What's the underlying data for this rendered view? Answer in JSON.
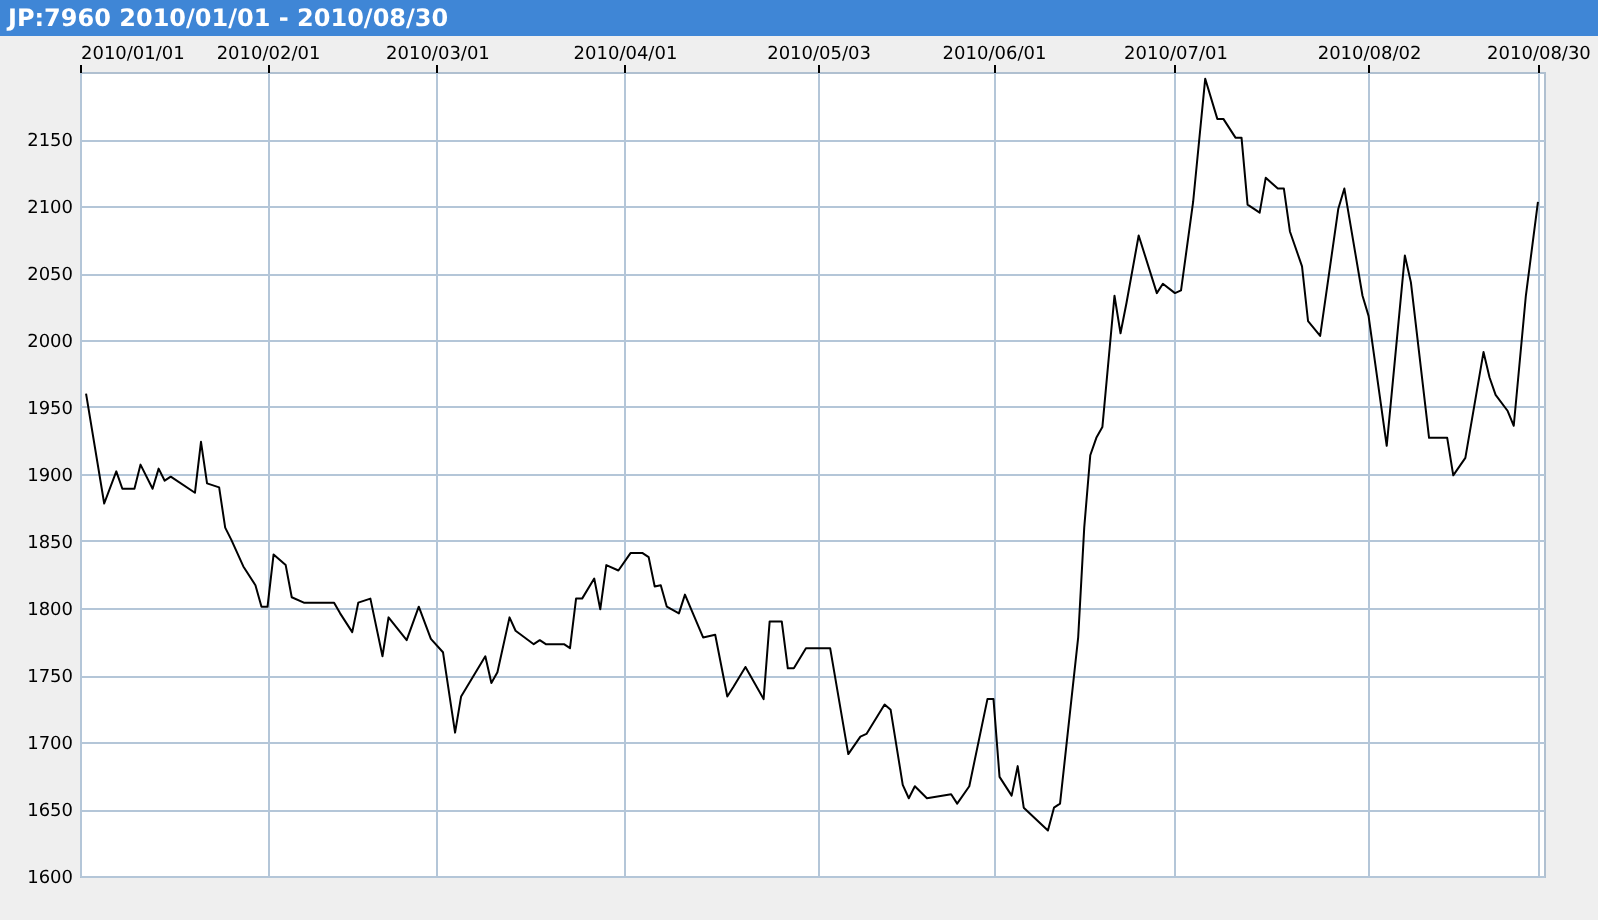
{
  "chart_data": {
    "type": "line",
    "title": "JP:7960 2010/01/01 - 2010/08/30",
    "color": "#000000",
    "grid": true,
    "x": [
      "2010-01-02",
      "2010-01-05",
      "2010-01-07",
      "2010-01-08",
      "2010-01-10",
      "2010-01-11",
      "2010-01-13",
      "2010-01-14",
      "2010-01-15",
      "2010-01-16",
      "2010-01-20",
      "2010-01-21",
      "2010-01-22",
      "2010-01-24",
      "2010-01-25",
      "2010-01-26",
      "2010-01-28",
      "2010-01-30",
      "2010-01-31",
      "2010-02-01",
      "2010-02-02",
      "2010-02-04",
      "2010-02-05",
      "2010-02-07",
      "2010-02-12",
      "2010-02-13",
      "2010-02-15",
      "2010-02-16",
      "2010-02-18",
      "2010-02-20",
      "2010-02-21",
      "2010-02-24",
      "2010-02-26",
      "2010-02-28",
      "2010-03-02",
      "2010-03-04",
      "2010-03-05",
      "2010-03-09",
      "2010-03-10",
      "2010-03-11",
      "2010-03-13",
      "2010-03-14",
      "2010-03-17",
      "2010-03-18",
      "2010-03-19",
      "2010-03-22",
      "2010-03-23",
      "2010-03-24",
      "2010-03-25",
      "2010-03-27",
      "2010-03-28",
      "2010-03-29",
      "2010-03-31",
      "2010-04-02",
      "2010-04-04",
      "2010-04-05",
      "2010-04-06",
      "2010-04-07",
      "2010-04-08",
      "2010-04-10",
      "2010-04-11",
      "2010-04-14",
      "2010-04-16",
      "2010-04-18",
      "2010-04-19",
      "2010-04-21",
      "2010-04-24",
      "2010-04-25",
      "2010-04-27",
      "2010-04-28",
      "2010-04-29",
      "2010-05-01",
      "2010-05-05",
      "2010-05-08",
      "2010-05-10",
      "2010-05-11",
      "2010-05-14",
      "2010-05-15",
      "2010-05-17",
      "2010-05-18",
      "2010-05-19",
      "2010-05-21",
      "2010-05-25",
      "2010-05-26",
      "2010-05-28",
      "2010-05-31",
      "2010-06-01",
      "2010-06-02",
      "2010-06-04",
      "2010-06-05",
      "2010-06-06",
      "2010-06-10",
      "2010-06-11",
      "2010-06-12",
      "2010-06-15",
      "2010-06-16",
      "2010-06-17",
      "2010-06-18",
      "2010-06-19",
      "2010-06-21",
      "2010-06-22",
      "2010-06-23",
      "2010-06-25",
      "2010-06-28",
      "2010-06-29",
      "2010-07-01",
      "2010-07-02",
      "2010-07-04",
      "2010-07-06",
      "2010-07-08",
      "2010-07-09",
      "2010-07-11",
      "2010-07-12",
      "2010-07-13",
      "2010-07-15",
      "2010-07-16",
      "2010-07-18",
      "2010-07-19",
      "2010-07-20",
      "2010-07-22",
      "2010-07-23",
      "2010-07-25",
      "2010-07-28",
      "2010-07-29",
      "2010-08-01",
      "2010-08-02",
      "2010-08-05",
      "2010-08-08",
      "2010-08-09",
      "2010-08-12",
      "2010-08-15",
      "2010-08-16",
      "2010-08-18",
      "2010-08-21",
      "2010-08-22",
      "2010-08-23",
      "2010-08-25",
      "2010-08-26",
      "2010-08-28",
      "2010-08-30"
    ],
    "values": [
      1960,
      1878,
      1902,
      1889,
      1889,
      1907,
      1889,
      1904,
      1895,
      1898,
      1886,
      1924,
      1893,
      1890,
      1860,
      1851,
      1831,
      1817,
      1801,
      1801,
      1840,
      1832,
      1808,
      1804,
      1804,
      1796,
      1782,
      1804,
      1807,
      1764,
      1793,
      1776,
      1801,
      1777,
      1767,
      1707,
      1734,
      1764,
      1744,
      1752,
      1793,
      1783,
      1773,
      1776,
      1773,
      1773,
      1770,
      1807,
      1807,
      1822,
      1799,
      1832,
      1828,
      1841,
      1841,
      1838,
      1816,
      1817,
      1801,
      1796,
      1810,
      1778,
      1780,
      1734,
      1741,
      1756,
      1732,
      1790,
      1790,
      1755,
      1755,
      1770,
      1770,
      1691,
      1704,
      1706,
      1728,
      1724,
      1668,
      1658,
      1667,
      1658,
      1661,
      1654,
      1667,
      1732,
      1732,
      1674,
      1660,
      1682,
      1651,
      1634,
      1651,
      1654,
      1778,
      1860,
      1914,
      1927,
      1935,
      2033,
      2005,
      2028,
      2078,
      2035,
      2042,
      2035,
      2037,
      2103,
      2195,
      2165,
      2165,
      2151,
      2151,
      2101,
      2095,
      2121,
      2113,
      2113,
      2081,
      2055,
      2014,
      2003,
      2098,
      2113,
      2033,
      2018,
      1921,
      2063,
      2043,
      1927,
      1927,
      1899,
      1912,
      1991,
      1972,
      1959,
      1947,
      1936,
      2033,
      2103
    ],
    "xlim": [
      "2010-01-01",
      "2010-08-31"
    ],
    "xticks": [
      {
        "value": "2010-01-01",
        "label": "2010/01/01"
      },
      {
        "value": "2010-02-01",
        "label": "2010/02/01"
      },
      {
        "value": "2010-03-01",
        "label": "2010/03/01"
      },
      {
        "value": "2010-04-01",
        "label": "2010/04/01"
      },
      {
        "value": "2010-05-03",
        "label": "2010/05/03"
      },
      {
        "value": "2010-06-01",
        "label": "2010/06/01"
      },
      {
        "value": "2010-07-01",
        "label": "2010/07/01"
      },
      {
        "value": "2010-08-02",
        "label": "2010/08/02"
      },
      {
        "value": "2010-08-30",
        "label": "2010/08/30"
      }
    ],
    "ylim": [
      1600,
      2200
    ],
    "yticks": [
      1600,
      1650,
      1700,
      1750,
      1800,
      1850,
      1900,
      1950,
      2000,
      2050,
      2100,
      2150
    ]
  }
}
